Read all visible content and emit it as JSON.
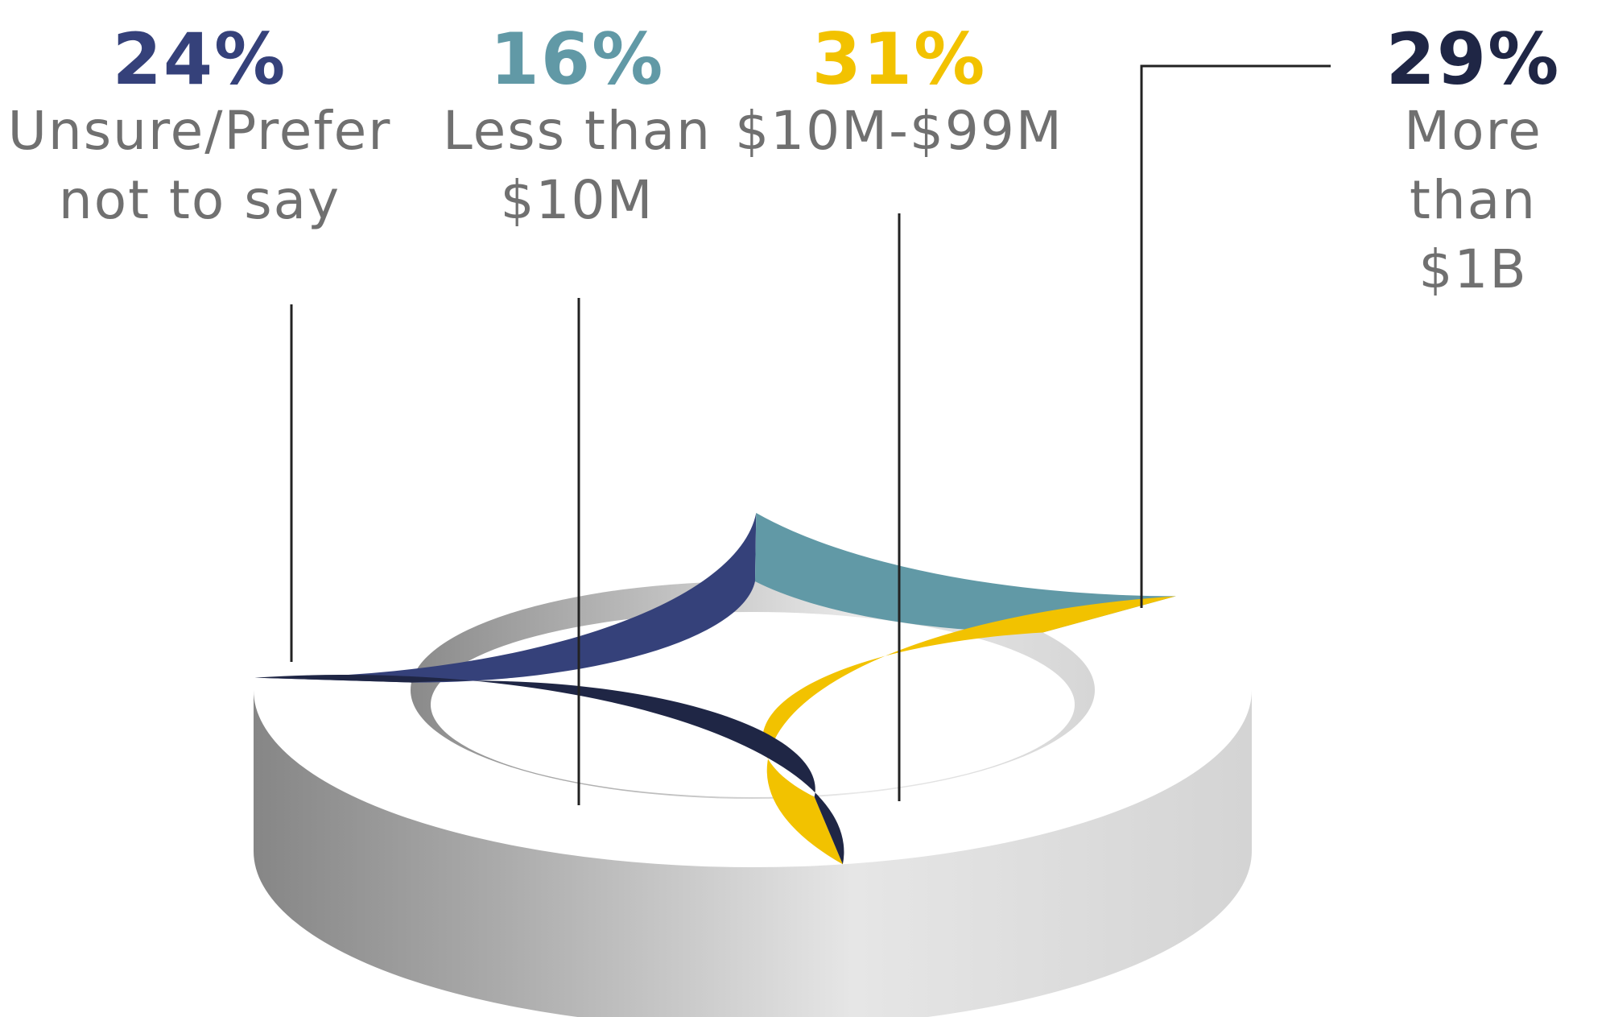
{
  "chart_data": {
    "type": "pie",
    "style": "3d-donut",
    "slices": [
      {
        "label": "Unsure/Prefer\nnot to say",
        "value": 24,
        "display_value": "24%",
        "color": "#35417A"
      },
      {
        "label": "Less than\n$10M",
        "value": 16,
        "display_value": "16%",
        "color": "#6199A6"
      },
      {
        "label": "$10M-$99M",
        "value": 31,
        "display_value": "31%",
        "color": "#F2C200"
      },
      {
        "label": "More than\n$1B",
        "value": 29,
        "display_value": "29%",
        "color": "#1F2645"
      }
    ],
    "legend": "none",
    "grid": false
  }
}
